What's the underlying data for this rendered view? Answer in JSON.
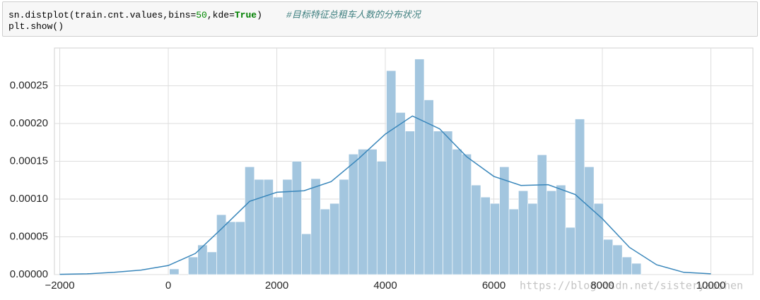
{
  "code": {
    "lines": [
      [
        "sn.distplot(train.cnt.values,bins=",
        "50",
        ",kde=",
        "True",
        ")",
        "#目标特征总租车人数的分布状况"
      ],
      [
        "plt.show()"
      ]
    ]
  },
  "chart_data": {
    "type": "histogram",
    "bins": [
      22,
      195.84,
      369.68,
      543.52,
      717.36,
      891.2,
      1065.04,
      1238.88,
      1412.72,
      1586.56,
      1760.4,
      1934.24,
      2108.08,
      2281.92,
      2455.76,
      2629.6,
      2803.44,
      2977.28,
      3151.12,
      3324.96,
      3498.8,
      3672.64,
      3846.48,
      4020.32,
      4194.16,
      4368,
      4541.84,
      4715.68,
      4889.52,
      5063.36,
      5237.2,
      5411.04,
      5584.88,
      5758.72,
      5932.56,
      6106.4,
      6280.24,
      6454.08,
      6627.92,
      6801.76,
      6975.6,
      7149.44,
      7323.28,
      7497.12,
      7670.96,
      7844.8,
      8018.64,
      8192.48,
      8366.32,
      8540.16,
      8714
    ],
    "values": [
      7.5e-06,
      0,
      2.33e-05,
      3.92e-05,
      3e-05,
      7.93e-05,
      7e-05,
      7e-05,
      0.0001427,
      0.000126,
      0.000126,
      0.0001026,
      0.000126,
      0.00015,
      5.4e-05,
      0.000127,
      8.68e-05,
      9.42e-05,
      0.000126,
      0.0001595,
      0.000166,
      0.000166,
      0.00015,
      0.00027,
      0.0002146,
      0.00019,
      0.0002854,
      0.0002313,
      0.00019,
      0.00019,
      0.000166,
      0.0001595,
      0.0001185,
      0.0001026,
      9.42e-05,
      0.0001427,
      8.68e-05,
      0.000111,
      9.42e-05,
      0.0001586,
      0.000111,
      0.0001185,
      6.25e-05,
      0.000206,
      0.0001427,
      9.42e-05,
      4.66e-05,
      3.92e-05,
      2.33e-05,
      1.49e-05
    ],
    "color": "#a3c6df",
    "kde": {
      "type": "line",
      "color": "#3a87bb",
      "x": [
        -2000,
        -1500,
        -1000,
        -500,
        0,
        500,
        1000,
        1500,
        2000,
        2500,
        3000,
        3500,
        4000,
        4500,
        5000,
        5500,
        6000,
        6500,
        7000,
        7500,
        8000,
        8500,
        9000,
        9500,
        10000
      ],
      "values": [
        3e-07,
        1e-06,
        3e-06,
        6e-06,
        1.2e-05,
        2.8e-05,
        6.2e-05,
        9.7e-05,
        0.000109,
        0.000111,
        0.000123,
        0.000153,
        0.000186,
        0.00021,
        0.000193,
        0.000156,
        0.00013,
        0.000118,
        0.000119,
        0.000106,
        7.4e-05,
        3.6e-05,
        1.3e-05,
        3e-06,
        1e-06
      ]
    },
    "xlim": [
      -2098,
      10775
    ],
    "ylim": [
      0,
      0.0003
    ],
    "xticks": [
      {
        "value": -2000,
        "label": "−2000"
      },
      0,
      2000,
      4000,
      6000,
      8000,
      10000
    ],
    "yticks": [
      {
        "value": 0,
        "label": "0.00000"
      },
      {
        "value": 5e-05,
        "label": "0.00005"
      },
      {
        "value": 0.0001,
        "label": "0.00010"
      },
      {
        "value": 0.00015,
        "label": "0.00015"
      },
      {
        "value": 0.0002,
        "label": "0.00020"
      },
      {
        "value": 0.00025,
        "label": "0.00025"
      }
    ],
    "grid": true
  },
  "watermark": "https://blog.csdn.net/sisteryaoshen"
}
